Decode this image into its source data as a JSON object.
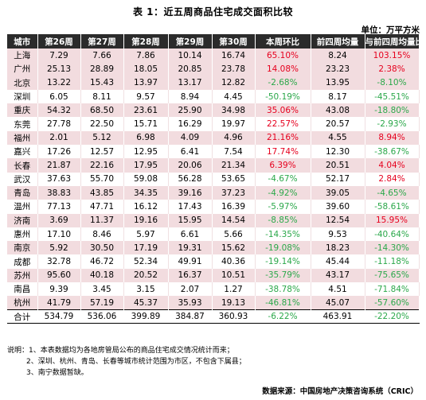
{
  "title": "表 1：近五周商品住宅成交面积比较",
  "unit": "单位：万平方米",
  "headers": [
    "城市",
    "第26周",
    "第27周",
    "第28周",
    "第29周",
    "第30周",
    "本周环比",
    "前四周均量",
    "与前四周均量比"
  ],
  "rows": [
    {
      "city": "上海",
      "w26": "7.29",
      "w27": "7.66",
      "w28": "7.86",
      "w29": "10.14",
      "w30": "16.74",
      "wow": "65.10%",
      "avg4": "8.24",
      "vs_avg": "103.15%",
      "bg": "pink",
      "wow_color": "red",
      "vs_color": "red"
    },
    {
      "city": "广州",
      "w26": "25.13",
      "w27": "28.89",
      "w28": "18.05",
      "w29": "20.85",
      "w30": "23.78",
      "wow": "14.08%",
      "avg4": "23.23",
      "vs_avg": "2.38%",
      "bg": "pink",
      "wow_color": "red",
      "vs_color": "red"
    },
    {
      "city": "北京",
      "w26": "13.22",
      "w27": "15.43",
      "w28": "13.97",
      "w29": "13.17",
      "w30": "12.82",
      "wow": "-2.68%",
      "avg4": "13.95",
      "vs_avg": "-8.10%",
      "bg": "pink",
      "wow_color": "green",
      "vs_color": "green"
    },
    {
      "city": "深圳",
      "w26": "6.05",
      "w27": "8.11",
      "w28": "9.57",
      "w29": "8.94",
      "w30": "4.45",
      "wow": "-50.19%",
      "avg4": "8.17",
      "vs_avg": "-45.51%",
      "bg": "white",
      "wow_color": "green",
      "vs_color": "green"
    },
    {
      "city": "重庆",
      "w26": "54.32",
      "w27": "68.50",
      "w28": "23.61",
      "w29": "25.90",
      "w30": "34.98",
      "wow": "35.06%",
      "avg4": "43.08",
      "vs_avg": "-18.80%",
      "bg": "pink",
      "wow_color": "red",
      "vs_color": "green"
    },
    {
      "city": "东莞",
      "w26": "27.78",
      "w27": "22.50",
      "w28": "15.71",
      "w29": "16.29",
      "w30": "19.97",
      "wow": "22.57%",
      "avg4": "20.57",
      "vs_avg": "-2.93%",
      "bg": "white",
      "wow_color": "red",
      "vs_color": "green"
    },
    {
      "city": "福州",
      "w26": "2.01",
      "w27": "5.12",
      "w28": "6.98",
      "w29": "4.09",
      "w30": "4.96",
      "wow": "21.16%",
      "avg4": "4.55",
      "vs_avg": "8.94%",
      "bg": "pink",
      "wow_color": "red",
      "vs_color": "red"
    },
    {
      "city": "嘉兴",
      "w26": "17.26",
      "w27": "12.57",
      "w28": "12.95",
      "w29": "6.41",
      "w30": "7.54",
      "wow": "17.74%",
      "avg4": "12.30",
      "vs_avg": "-38.67%",
      "bg": "white",
      "wow_color": "red",
      "vs_color": "green"
    },
    {
      "city": "长春",
      "w26": "21.87",
      "w27": "22.16",
      "w28": "17.95",
      "w29": "20.06",
      "w30": "21.34",
      "wow": "6.39%",
      "avg4": "20.51",
      "vs_avg": "4.04%",
      "bg": "pink",
      "wow_color": "red",
      "vs_color": "red"
    },
    {
      "city": "武汉",
      "w26": "37.63",
      "w27": "55.70",
      "w28": "59.08",
      "w29": "56.28",
      "w30": "53.65",
      "wow": "-4.67%",
      "avg4": "52.17",
      "vs_avg": "2.84%",
      "bg": "white",
      "wow_color": "green",
      "vs_color": "red"
    },
    {
      "city": "青岛",
      "w26": "38.83",
      "w27": "43.85",
      "w28": "34.35",
      "w29": "39.16",
      "w30": "37.23",
      "wow": "-4.92%",
      "avg4": "39.05",
      "vs_avg": "-4.65%",
      "bg": "pink",
      "wow_color": "green",
      "vs_color": "green"
    },
    {
      "city": "温州",
      "w26": "77.13",
      "w27": "47.71",
      "w28": "16.12",
      "w29": "17.43",
      "w30": "16.39",
      "wow": "-5.97%",
      "avg4": "39.60",
      "vs_avg": "-58.61%",
      "bg": "white",
      "wow_color": "green",
      "vs_color": "green"
    },
    {
      "city": "济南",
      "w26": "3.69",
      "w27": "11.37",
      "w28": "19.16",
      "w29": "15.95",
      "w30": "14.54",
      "wow": "-8.85%",
      "avg4": "12.54",
      "vs_avg": "15.95%",
      "bg": "pink",
      "wow_color": "green",
      "vs_color": "red"
    },
    {
      "city": "惠州",
      "w26": "17.10",
      "w27": "8.46",
      "w28": "5.97",
      "w29": "6.61",
      "w30": "5.66",
      "wow": "-14.35%",
      "avg4": "9.53",
      "vs_avg": "-40.64%",
      "bg": "white",
      "wow_color": "green",
      "vs_color": "green"
    },
    {
      "city": "南京",
      "w26": "5.92",
      "w27": "30.50",
      "w28": "17.19",
      "w29": "19.31",
      "w30": "15.62",
      "wow": "-19.08%",
      "avg4": "18.23",
      "vs_avg": "-14.30%",
      "bg": "pink",
      "wow_color": "green",
      "vs_color": "green"
    },
    {
      "city": "成都",
      "w26": "32.78",
      "w27": "46.72",
      "w28": "52.34",
      "w29": "49.91",
      "w30": "40.36",
      "wow": "-19.14%",
      "avg4": "45.44",
      "vs_avg": "-11.18%",
      "bg": "white",
      "wow_color": "green",
      "vs_color": "green"
    },
    {
      "city": "苏州",
      "w26": "95.60",
      "w27": "40.18",
      "w28": "20.52",
      "w29": "16.37",
      "w30": "10.51",
      "wow": "-35.79%",
      "avg4": "43.17",
      "vs_avg": "-75.65%",
      "bg": "pink",
      "wow_color": "green",
      "vs_color": "green"
    },
    {
      "city": "南昌",
      "w26": "9.39",
      "w27": "3.45",
      "w28": "3.15",
      "w29": "2.07",
      "w30": "1.27",
      "wow": "-38.78%",
      "avg4": "4.51",
      "vs_avg": "-71.84%",
      "bg": "white",
      "wow_color": "green",
      "vs_color": "green"
    },
    {
      "city": "杭州",
      "w26": "41.79",
      "w27": "57.19",
      "w28": "45.37",
      "w29": "35.93",
      "w30": "19.13",
      "wow": "-46.81%",
      "avg4": "45.07",
      "vs_avg": "-57.60%",
      "bg": "pink",
      "wow_color": "green",
      "vs_color": "green"
    }
  ],
  "total": {
    "city": "合计",
    "w26": "534.79",
    "w27": "536.06",
    "w28": "399.89",
    "w29": "384.87",
    "w30": "360.93",
    "wow": "-6.22%",
    "avg4": "463.91",
    "vs_avg": "-22.20%",
    "wow_color": "green",
    "vs_color": "green"
  },
  "notes": {
    "n1": "说明：1、本表数据均为各地房管局公布的商品住宅成交情况统计而来；",
    "n2": "2、深圳、杭州、青岛、长春等城市统计范围为市区，不包含下属县；",
    "n3": "3、南宁数据暂缺。"
  },
  "source": "数据来源：中国房地产决策咨询系统（CRIC）",
  "colors": {
    "header_bg": "#2b2b2b",
    "pink_row": "#f2dcdf",
    "positive": "#e6001e",
    "negative": "#2ba84a"
  }
}
